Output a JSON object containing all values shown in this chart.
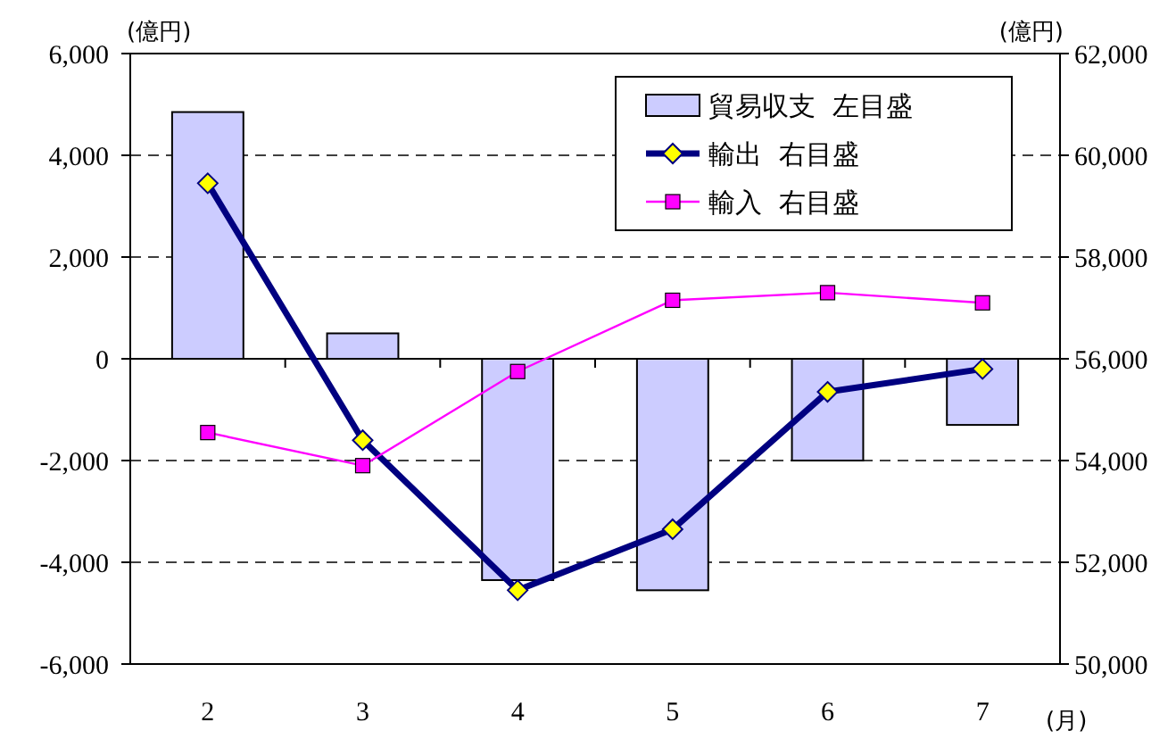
{
  "chart_data": {
    "type": "bar",
    "categories": [
      "2",
      "3",
      "4",
      "5",
      "6",
      "7"
    ],
    "xlabel": "(月)",
    "ylabel": "(億円)",
    "y2label": "(億円)",
    "series": [
      {
        "name": "貿易収支  左目盛",
        "color": "#ccccff",
        "values": [
          4850,
          500,
          -4350,
          -4550,
          -2000,
          -1300
        ]
      },
      {
        "name": "輸出  右目盛",
        "type": "line",
        "axis": "y2",
        "color": "#000080",
        "marker": "diamond",
        "values": [
          59450,
          54400,
          51450,
          52650,
          55350,
          55800
        ]
      },
      {
        "name": "輸入  右目盛",
        "type": "line",
        "axis": "y2",
        "color": "#ff00ff",
        "marker": "square",
        "values": [
          54550,
          53900,
          55750,
          57150,
          57300,
          57100
        ]
      }
    ],
    "ylim": [
      -6000,
      6000
    ],
    "yticks": [
      {
        "value": -6000,
        "label": "-6,000"
      },
      {
        "value": -4000,
        "label": "-4,000"
      },
      {
        "value": -2000,
        "label": "-2,000"
      },
      0,
      {
        "value": 2000,
        "label": "2,000"
      },
      {
        "value": 4000,
        "label": "4,000"
      },
      {
        "value": 6000,
        "label": "6,000"
      }
    ],
    "y2lim": [
      50000,
      62000
    ],
    "y2ticks": [
      {
        "value": 50000,
        "label": "50,000"
      },
      {
        "value": 52000,
        "label": "52,000"
      },
      {
        "value": 54000,
        "label": "54,000"
      },
      {
        "value": 56000,
        "label": "56,000"
      },
      {
        "value": 58000,
        "label": "58,000"
      },
      {
        "value": 60000,
        "label": "60,000"
      },
      {
        "value": 62000,
        "label": "62,000"
      }
    ],
    "grid": "y",
    "legend": "top right"
  }
}
